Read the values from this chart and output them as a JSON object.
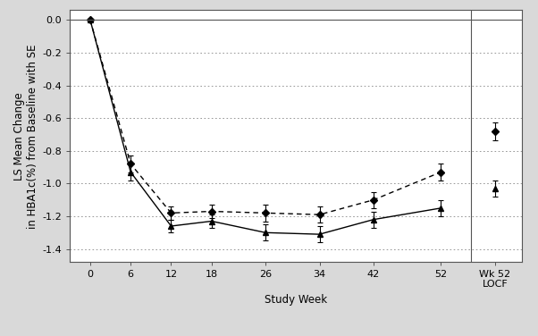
{
  "cana_x": [
    0,
    6,
    12,
    18,
    26,
    34,
    42,
    52
  ],
  "cana_y": [
    0.0,
    -0.93,
    -1.26,
    -1.23,
    -1.3,
    -1.31,
    -1.22,
    -1.15
  ],
  "cana_yerr": [
    0.005,
    0.05,
    0.04,
    0.04,
    0.05,
    0.05,
    0.05,
    0.05
  ],
  "cana_locf_x": [
    60
  ],
  "cana_locf_y": [
    -1.03
  ],
  "cana_locf_yerr": [
    0.05
  ],
  "sita_x": [
    0,
    6,
    12,
    18,
    26,
    34,
    42,
    52
  ],
  "sita_y": [
    0.0,
    -0.88,
    -1.18,
    -1.17,
    -1.18,
    -1.19,
    -1.1,
    -0.93
  ],
  "sita_yerr": [
    0.005,
    0.05,
    0.04,
    0.04,
    0.05,
    0.05,
    0.05,
    0.05
  ],
  "sita_locf_x": [
    60
  ],
  "sita_locf_y": [
    -0.68
  ],
  "sita_locf_yerr": [
    0.055
  ],
  "xtick_positions": [
    0,
    6,
    12,
    18,
    26,
    34,
    42,
    52,
    60
  ],
  "xticklabels": [
    "0",
    "6",
    "12",
    "18",
    "26",
    "34",
    "42",
    "52",
    "Wk 52\nLOCF"
  ],
  "xlim": [
    -3,
    64
  ],
  "separator_x": 56.5,
  "ylim": [
    -1.48,
    0.06
  ],
  "yticks": [
    0.0,
    -0.2,
    -0.4,
    -0.6,
    -0.8,
    -1.0,
    -1.2,
    -1.4
  ],
  "yticklabels": [
    "0.0",
    "-0.2",
    "-0.4",
    "-0.6",
    "-0.8",
    "-1.0",
    "-1.2",
    "-1.4"
  ],
  "ylabel": "LS Mean Change\nin HBA1c(%) from Baseline with SE",
  "xlabel": "Study Week",
  "line_color": "#000000",
  "bg_color": "#d9d9d9",
  "plot_bg_color": "#ffffff",
  "tick_fontsize": 8,
  "label_fontsize": 8.5,
  "legend_fontsize": 8
}
